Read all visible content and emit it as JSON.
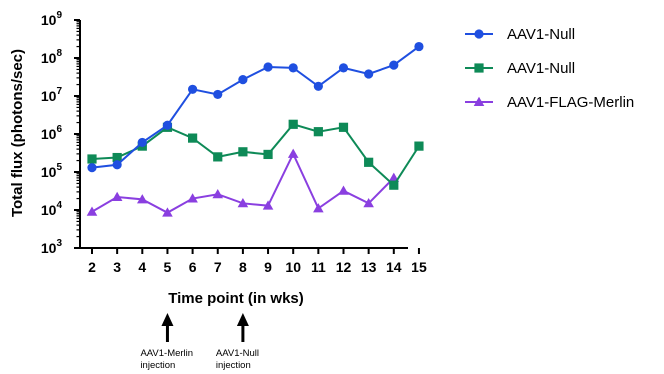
{
  "chart_data": {
    "type": "line",
    "xlabel": "Time point (in wks)",
    "ylabel": "Total flux (photons/sec)",
    "yscale": "log",
    "ylim": [
      1000,
      1000000000
    ],
    "y_ticks": [
      {
        "base": "10",
        "exp": "3",
        "value": 1000
      },
      {
        "base": "10",
        "exp": "4",
        "value": 10000
      },
      {
        "base": "10",
        "exp": "5",
        "value": 100000
      },
      {
        "base": "10",
        "exp": "6",
        "value": 1000000
      },
      {
        "base": "10",
        "exp": "7",
        "value": 10000000
      },
      {
        "base": "10",
        "exp": "8",
        "value": 100000000
      },
      {
        "base": "10",
        "exp": "9",
        "value": 1000000000
      }
    ],
    "x": [
      2,
      3,
      4,
      5,
      6,
      7,
      8,
      9,
      10,
      11,
      12,
      13,
      14,
      15
    ],
    "x_tick_labels": [
      "2",
      "3",
      "4",
      "5",
      "6",
      "7",
      "8",
      "9",
      "10",
      "11",
      "12",
      "13",
      "14",
      "15"
    ],
    "grid": false,
    "legend_position": "right",
    "series": [
      {
        "name": "AAV1-Null",
        "marker": "circle",
        "color": "#1f4fe0",
        "values": [
          130000,
          155000,
          600000,
          1700000,
          15000000,
          11000000,
          27000000,
          58000000,
          55000000,
          18000000,
          55000000,
          38000000,
          65000000,
          200000000
        ]
      },
      {
        "name": "AAV1-Null",
        "marker": "square",
        "color": "#0e8a57",
        "values": [
          220000,
          240000,
          480000,
          1500000,
          780000,
          250000,
          340000,
          290000,
          1800000,
          1150000,
          1500000,
          180000,
          45000,
          480000
        ]
      },
      {
        "name": "AAV1-FLAG-Merlin",
        "marker": "triangle",
        "color": "#8a3fe0",
        "values": [
          9000,
          22000,
          19000,
          8500,
          20000,
          26000,
          15000,
          13000,
          300000,
          11000,
          32000,
          15000,
          70000,
          null
        ]
      }
    ],
    "annotations": [
      {
        "x": 5,
        "line1": "AAV1-Merlin",
        "line2": "injection"
      },
      {
        "x": 8,
        "line1": "AAV1-Null",
        "line2": "injection"
      }
    ]
  }
}
